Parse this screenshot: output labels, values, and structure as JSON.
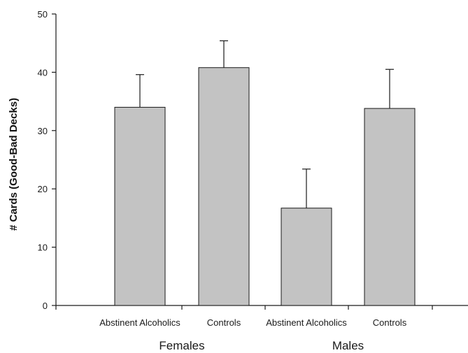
{
  "chart_data": {
    "type": "bar",
    "title": "",
    "xlabel": "",
    "ylabel": "# Cards (Good-Bad Decks)",
    "ylim": [
      0,
      50
    ],
    "yticks": [
      0,
      10,
      20,
      30,
      40,
      50
    ],
    "grid": false,
    "legend": "none",
    "groups": [
      {
        "label": "Females",
        "categories": [
          "Abstinent Alcoholics",
          "Controls"
        ],
        "values": [
          34,
          40.8
        ],
        "error_upper": [
          5.6,
          4.6
        ]
      },
      {
        "label": "Males",
        "categories": [
          "Abstinent Alcoholics",
          "Controls"
        ],
        "values": [
          16.7,
          33.8
        ],
        "error_upper": [
          6.7,
          6.7
        ]
      }
    ],
    "colors": {
      "bar_fill": "#c3c3c3",
      "bar_stroke": "#1a1a1a",
      "axis": "#1a1a1a",
      "plot_bg": "#ffffff"
    }
  }
}
